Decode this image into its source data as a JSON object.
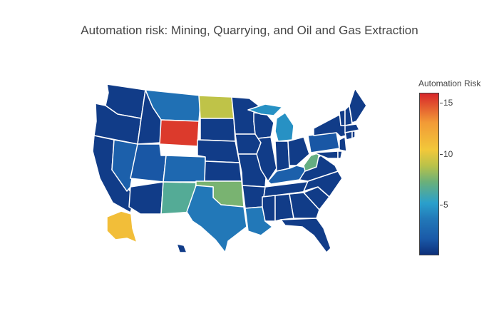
{
  "title": "Automation risk: Mining, Quarrying, and Oil and Gas Extraction",
  "colorbar": {
    "title": "Automation Risk",
    "ticks": [
      {
        "label": "15",
        "value": 15
      },
      {
        "label": "10",
        "value": 10
      },
      {
        "label": "5",
        "value": 5
      }
    ],
    "range": [
      0,
      16
    ]
  },
  "chart_data": {
    "type": "choropleth",
    "region": "USA states",
    "colorscale_stops": [
      "#0d2f7a",
      "#1a5aa8",
      "#2278b8",
      "#2aa0cc",
      "#6ab07a",
      "#b8c24a",
      "#f2c83a",
      "#f29a36",
      "#d7262a"
    ],
    "values": {
      "WY": 15.5,
      "AK": 11,
      "ND": 9,
      "OK": 7.5,
      "NM": 6.5,
      "WV": 7,
      "MI": 4.5,
      "LA": 3.5,
      "TX": 3.5,
      "MT": 3,
      "CO": 2.5,
      "NV": 2,
      "KY": 2,
      "UT": 1.5,
      "PA": 1.5,
      "WA": 0.5,
      "OR": 0.5,
      "CA": 0.5,
      "ID": 0.5,
      "AZ": 0.5,
      "SD": 0.5,
      "NE": 0.5,
      "KS": 0.5,
      "MN": 0.5,
      "IA": 0.5,
      "MO": 0.5,
      "AR": 0.5,
      "WI": 0.5,
      "IL": 0.5,
      "IN": 0.5,
      "OH": 0.5,
      "MS": 0.5,
      "AL": 0.5,
      "TN": 0.5,
      "GA": 0.5,
      "FL": 0.5,
      "SC": 0.5,
      "NC": 0.5,
      "VA": 0.5,
      "MD": 0.5,
      "DE": 0.5,
      "NJ": 0.5,
      "NY": 0.5,
      "CT": 0.5,
      "RI": 0.5,
      "MA": 0.5,
      "VT": 0.5,
      "NH": 0.5,
      "ME": 0.5,
      "HI": 0.5
    }
  }
}
